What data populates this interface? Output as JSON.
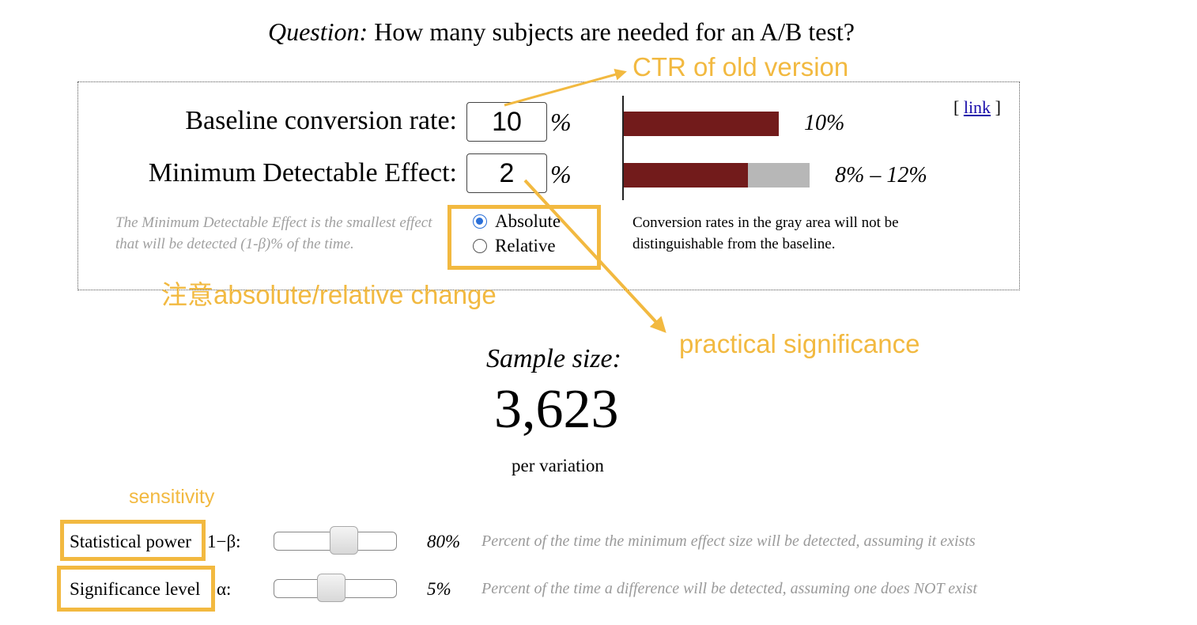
{
  "question": {
    "prefix": "Question:",
    "text": "How many subjects are needed for an A/B test?"
  },
  "baseline": {
    "label": "Baseline conversion rate:",
    "value": "10",
    "unit": "%",
    "bar_label": "10%",
    "bar_fraction": 0.1
  },
  "mde": {
    "label": "Minimum Detectable Effect:",
    "value": "2",
    "unit": "%",
    "bar_label": "8% – 12%",
    "range": [
      8,
      12
    ]
  },
  "link": {
    "open": "[",
    "text": "link",
    "close": "]"
  },
  "mde_help": "The Minimum Detectable Effect is the smallest effect that will be detected (1-β)% of the time.",
  "mode_options": [
    {
      "label": "Absolute",
      "selected": true
    },
    {
      "label": "Relative",
      "selected": false
    }
  ],
  "gray_note": "Conversion rates in the gray area will not be distinguishable from the baseline.",
  "result": {
    "label": "Sample size:",
    "value": "3,623",
    "unit": "per variation"
  },
  "power": {
    "label": "Statistical power",
    "symbol": "1−β:",
    "value": "80%",
    "level": 0.8,
    "description": "Percent of the time the minimum effect size will be detected, assuming it exists"
  },
  "significance": {
    "label": "Significance level",
    "symbol": "α:",
    "value": "5%",
    "level": 0.05,
    "description": "Percent of the time a difference will be detected, assuming one does NOT exist"
  },
  "annotations": {
    "ctr": "CTR of old version",
    "change": "注意absolute/relative change",
    "practical": "practical significance",
    "sensitivity": "sensitivity"
  },
  "colors": {
    "annotation": "#f2b940",
    "bar": "#721b1b",
    "gray_area": "#b7b7b7",
    "link": "#1a0dab",
    "radio": "#2a6fd8"
  }
}
